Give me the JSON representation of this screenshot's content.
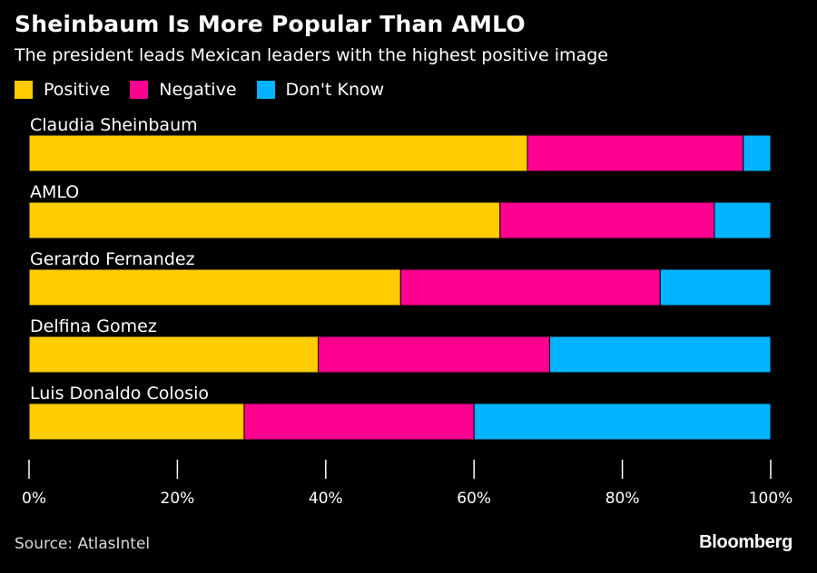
{
  "chart_data": {
    "type": "bar",
    "orientation": "horizontal",
    "stacked": true,
    "title": "Sheinbaum Is More Popular Than AMLO",
    "subtitle": "The president leads Mexican leaders with the highest positive image",
    "categories": [
      "Claudia Sheinbaum",
      "AMLO",
      "Gerardo Fernandez",
      "Delfina Gomez",
      "Luis Donaldo Colosio"
    ],
    "series": [
      {
        "name": "Positive",
        "color": "#ffcc00",
        "values": [
          67.2,
          63.5,
          50.1,
          39.0,
          29.0
        ]
      },
      {
        "name": "Negative",
        "color": "#ff0090",
        "values": [
          29.1,
          28.9,
          35.0,
          31.2,
          31.0
        ]
      },
      {
        "name": "Don't Know",
        "color": "#00b4ff",
        "values": [
          3.7,
          7.6,
          14.9,
          29.8,
          40.0
        ]
      }
    ],
    "xlim": [
      0,
      100
    ],
    "xticks": [
      0,
      20,
      40,
      60,
      80,
      100
    ],
    "xtick_labels": [
      "0%",
      "20%",
      "40%",
      "60%",
      "80%",
      "100%"
    ],
    "legend_position": "top-left",
    "grid": false
  },
  "source": "Source: AtlasIntel",
  "brand": "Bloomberg"
}
